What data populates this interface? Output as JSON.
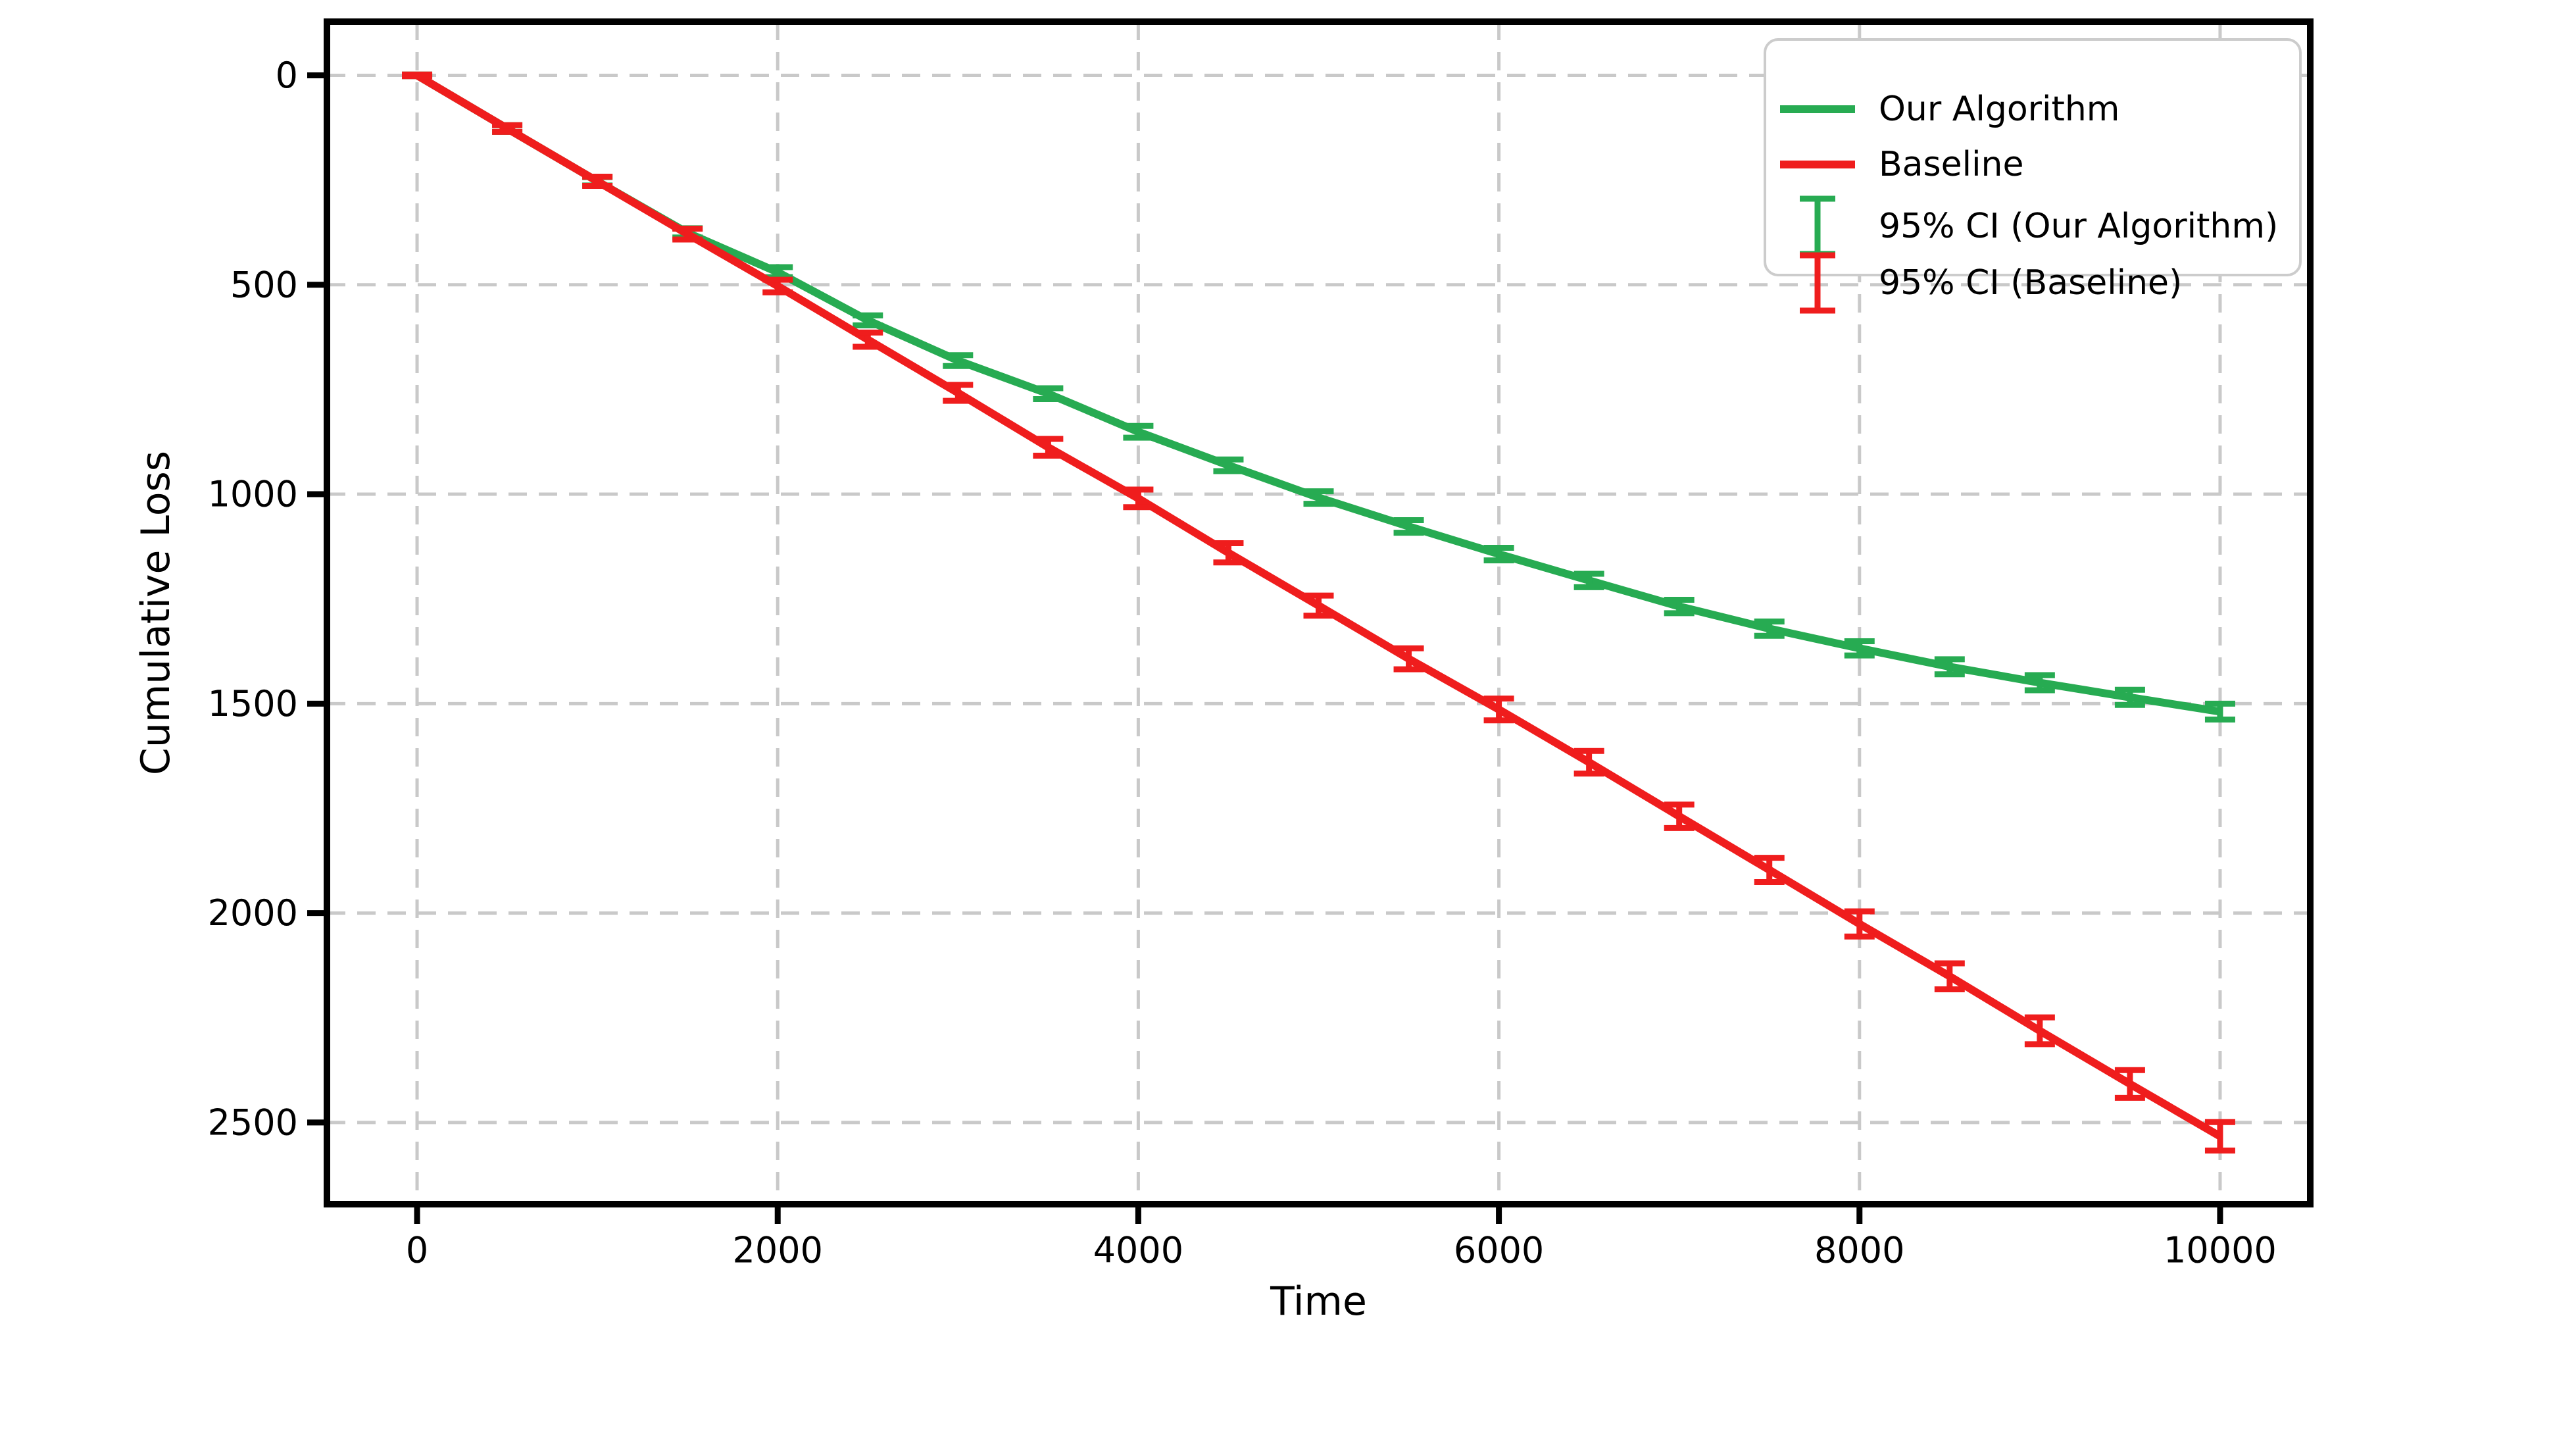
{
  "figure": {
    "background": "#ffffff"
  },
  "chart_data": {
    "type": "line",
    "title": "",
    "xlabel": "Time",
    "ylabel": "Cumulative Loss",
    "x_ticks": [
      0,
      2000,
      4000,
      6000,
      8000,
      10000
    ],
    "y_ticks": [
      0,
      500,
      1000,
      1500,
      2000,
      2500
    ],
    "xlim": [
      -500,
      10500
    ],
    "ylim": [
      -128,
      2695
    ],
    "y_axis_inverted": true,
    "grid": {
      "visible": true,
      "style": "dashed",
      "color": "#c9c9c9"
    },
    "x": [
      0,
      500,
      1000,
      1500,
      2000,
      2500,
      3000,
      3500,
      4000,
      4500,
      5000,
      5500,
      6000,
      6500,
      7000,
      7500,
      8000,
      8500,
      9000,
      9500,
      10000
    ],
    "series": [
      {
        "name": "Our Algorithm",
        "color": "#27ab52",
        "values": [
          0,
          127,
          253,
          376,
          470,
          585,
          681,
          760,
          851,
          931,
          1008,
          1077,
          1143,
          1206,
          1268,
          1321,
          1368,
          1412,
          1450,
          1485,
          1519
        ],
        "ci95": [
          2,
          8,
          10,
          11,
          12,
          12,
          13,
          13,
          14,
          14,
          15,
          15,
          15,
          16,
          16,
          17,
          17,
          18,
          18,
          18,
          19
        ]
      },
      {
        "name": "Baseline",
        "color": "#ef1d1d",
        "values": [
          0,
          127,
          253,
          379,
          503,
          631,
          758,
          888,
          1010,
          1140,
          1266,
          1393,
          1514,
          1640,
          1769,
          1897,
          2026,
          2151,
          2281,
          2408,
          2533
        ],
        "ci95": [
          2,
          8,
          11,
          13,
          15,
          17,
          19,
          20,
          21,
          23,
          24,
          25,
          26,
          27,
          28,
          29,
          30,
          31,
          32,
          33,
          34
        ]
      }
    ],
    "legend": {
      "position": "upper right",
      "entries": [
        {
          "label": "Our Algorithm",
          "glyph": "line",
          "color": "#27ab52"
        },
        {
          "label": "Baseline",
          "glyph": "line",
          "color": "#ef1d1d"
        },
        {
          "label": "95% CI (Our Algorithm)",
          "glyph": "errorbar",
          "color": "#27ab52"
        },
        {
          "label": "95% CI (Baseline)",
          "glyph": "errorbar",
          "color": "#ef1d1d"
        }
      ]
    }
  }
}
